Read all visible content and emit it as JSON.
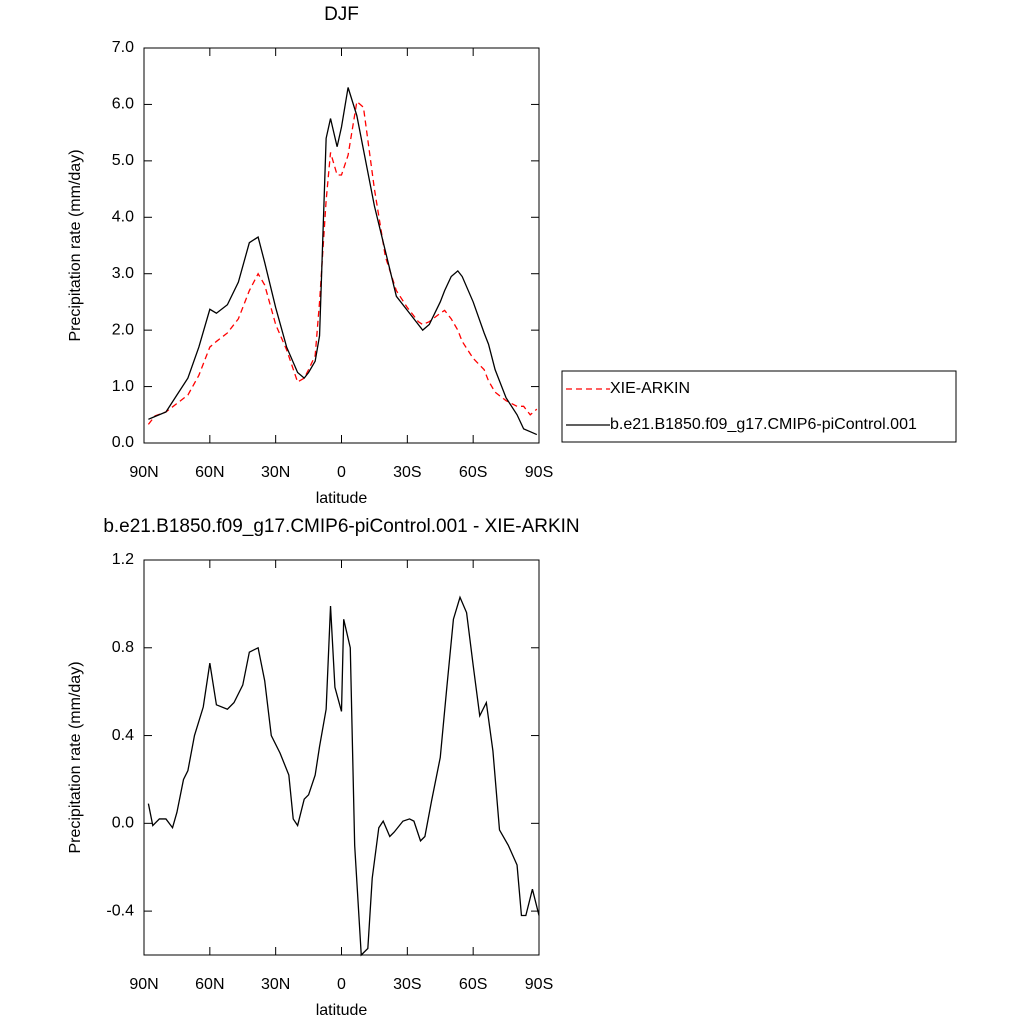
{
  "chart_data": [
    {
      "type": "line",
      "title": "DJF",
      "xlabel": "latitude",
      "ylabel": "Precipitation rate (mm/day)",
      "xlim": [
        90,
        -90
      ],
      "xticks": [
        {
          "value": 90,
          "label": "90N"
        },
        {
          "value": 60,
          "label": "60N"
        },
        {
          "value": 30,
          "label": "30N"
        },
        0,
        {
          "value": -30,
          "label": "30S"
        },
        {
          "value": -60,
          "label": "60S"
        },
        {
          "value": -90,
          "label": "90S"
        }
      ],
      "ylim": [
        0,
        7
      ],
      "yticks": [
        {
          "value": 0,
          "label": "0.0"
        },
        {
          "value": 1,
          "label": "1.0"
        },
        {
          "value": 2,
          "label": "2.0"
        },
        {
          "value": 3,
          "label": "3.0"
        },
        {
          "value": 4,
          "label": "4.0"
        },
        {
          "value": 5,
          "label": "5.0"
        },
        {
          "value": 6,
          "label": "6.0"
        },
        {
          "value": 7,
          "label": "7.0"
        }
      ],
      "legend": "right",
      "x": [
        88,
        85,
        80,
        75,
        70,
        65,
        60,
        57,
        52,
        47,
        42,
        38,
        35,
        30,
        25,
        20,
        17,
        15,
        12,
        10,
        7,
        5,
        2,
        0,
        -3,
        -7,
        -10,
        -15,
        -20,
        -25,
        -30,
        -35,
        -37,
        -40,
        -45,
        -47,
        -50,
        -53,
        -55,
        -60,
        -65,
        -67,
        -70,
        -75,
        -80,
        -83,
        -86,
        -89
      ],
      "series": [
        {
          "name": "XIE-ARKIN",
          "color": "#ff0000",
          "dash": "6,4",
          "values": [
            0.33,
            0.48,
            0.55,
            0.7,
            0.85,
            1.2,
            1.7,
            1.8,
            1.95,
            2.2,
            2.7,
            3.0,
            2.8,
            2.1,
            1.65,
            1.08,
            1.15,
            1.3,
            1.55,
            2.5,
            4.3,
            5.15,
            4.75,
            4.75,
            5.1,
            6.05,
            5.95,
            4.5,
            3.3,
            2.7,
            2.4,
            2.15,
            2.1,
            2.15,
            2.3,
            2.35,
            2.2,
            2.0,
            1.8,
            1.5,
            1.3,
            1.1,
            0.9,
            0.75,
            0.65,
            0.65,
            0.5,
            0.6
          ]
        },
        {
          "name": "b.e21.B1850.f09_g17.CMIP6-piControl.001",
          "color": "#000000",
          "values": [
            0.42,
            0.47,
            0.55,
            0.85,
            1.15,
            1.7,
            2.37,
            2.3,
            2.45,
            2.85,
            3.55,
            3.65,
            3.2,
            2.4,
            1.7,
            1.25,
            1.15,
            1.25,
            1.45,
            1.9,
            5.4,
            5.75,
            5.25,
            5.6,
            6.3,
            5.8,
            5.2,
            4.2,
            3.4,
            2.6,
            2.35,
            2.1,
            2.0,
            2.1,
            2.5,
            2.7,
            2.95,
            3.05,
            2.95,
            2.5,
            1.95,
            1.75,
            1.3,
            0.8,
            0.5,
            0.25,
            0.2,
            0.15
          ]
        }
      ]
    },
    {
      "type": "line",
      "title": "b.e21.B1850.f09_g17.CMIP6-piControl.001 - XIE-ARKIN",
      "xlabel": "latitude",
      "ylabel": "Precipitation rate (mm/day)",
      "xlim": [
        90,
        -90
      ],
      "xticks": [
        {
          "value": 90,
          "label": "90N"
        },
        {
          "value": 60,
          "label": "60N"
        },
        {
          "value": 30,
          "label": "30N"
        },
        0,
        {
          "value": -30,
          "label": "30S"
        },
        {
          "value": -60,
          "label": "60S"
        },
        {
          "value": -90,
          "label": "90S"
        }
      ],
      "ylim": [
        -0.6,
        1.2
      ],
      "yticks": [
        -0.4,
        {
          "value": 0,
          "label": "0.0"
        },
        0.4,
        0.8,
        1.2
      ],
      "x": [
        88,
        86,
        83,
        80,
        77,
        75,
        72,
        70,
        67,
        63,
        60,
        57,
        52,
        49,
        45,
        42,
        38,
        35,
        32,
        28,
        24,
        22,
        20,
        17,
        15,
        12,
        10,
        7,
        5,
        3,
        0,
        -1,
        -4,
        -6,
        -9,
        -12,
        -14,
        -17,
        -19,
        -22,
        -24,
        -28,
        -31,
        -33,
        -36,
        -38,
        -41,
        -45,
        -48,
        -51,
        -54,
        -57,
        -60,
        -63,
        -66,
        -69,
        -72,
        -76,
        -80,
        -82,
        -84,
        -87,
        -90
      ],
      "series": [
        {
          "color": "#000000",
          "values": [
            0.09,
            -0.01,
            0.02,
            0.02,
            -0.02,
            0.05,
            0.2,
            0.24,
            0.4,
            0.53,
            0.73,
            0.54,
            0.52,
            0.55,
            0.63,
            0.78,
            0.8,
            0.65,
            0.4,
            0.32,
            0.22,
            0.02,
            -0.01,
            0.11,
            0.13,
            0.22,
            0.35,
            0.52,
            0.99,
            0.62,
            0.51,
            0.93,
            0.8,
            -0.1,
            -0.6,
            -0.57,
            -0.25,
            -0.02,
            0.01,
            -0.06,
            -0.04,
            0.01,
            0.02,
            0.01,
            -0.08,
            -0.06,
            0.1,
            0.3,
            0.62,
            0.93,
            1.03,
            0.96,
            0.72,
            0.49,
            0.55,
            0.33,
            -0.03,
            -0.1,
            -0.19,
            -0.42,
            -0.42,
            -0.3,
            -0.42
          ]
        }
      ]
    }
  ]
}
